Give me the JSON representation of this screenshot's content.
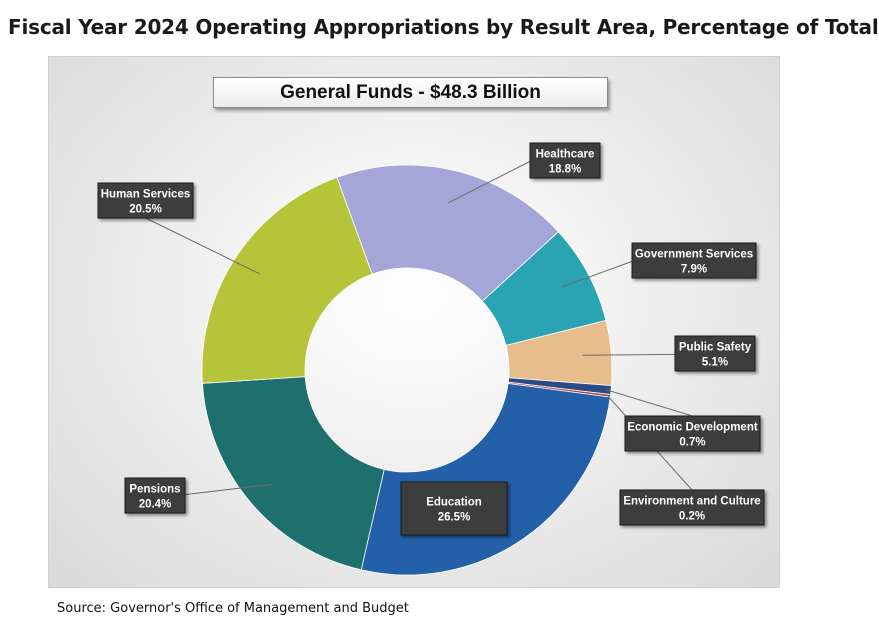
{
  "page": {
    "title": "Fiscal Year 2024 Operating Appropriations by Result Area, Percentage of Total",
    "source": "Source: Governor's Office of Management and Budget"
  },
  "chart_data": {
    "type": "pie",
    "subtitle": "General Funds - $48.3 Billion",
    "unit": "%",
    "slices": [
      {
        "label": "Healthcare",
        "value": 18.8,
        "display": "18.8%",
        "color": "#a3a6d6"
      },
      {
        "label": "Government Services",
        "value": 7.9,
        "display": "7.9%",
        "color": "#2aa3b3"
      },
      {
        "label": "Public Safety",
        "value": 5.1,
        "display": "5.1%",
        "color": "#e8bd8c"
      },
      {
        "label": "Economic Development",
        "value": 0.7,
        "display": "0.7%",
        "color": "#2a4b86"
      },
      {
        "label": "Environment and Culture",
        "value": 0.2,
        "display": "0.2%",
        "color": "#b23a3a"
      },
      {
        "label": "Education",
        "value": 26.5,
        "display": "26.5%",
        "color": "#2360a8"
      },
      {
        "label": "Pensions",
        "value": 20.4,
        "display": "20.4%",
        "color": "#1e706e"
      },
      {
        "label": "Human Services",
        "value": 20.5,
        "display": "20.5%",
        "color": "#b5c439"
      }
    ]
  }
}
